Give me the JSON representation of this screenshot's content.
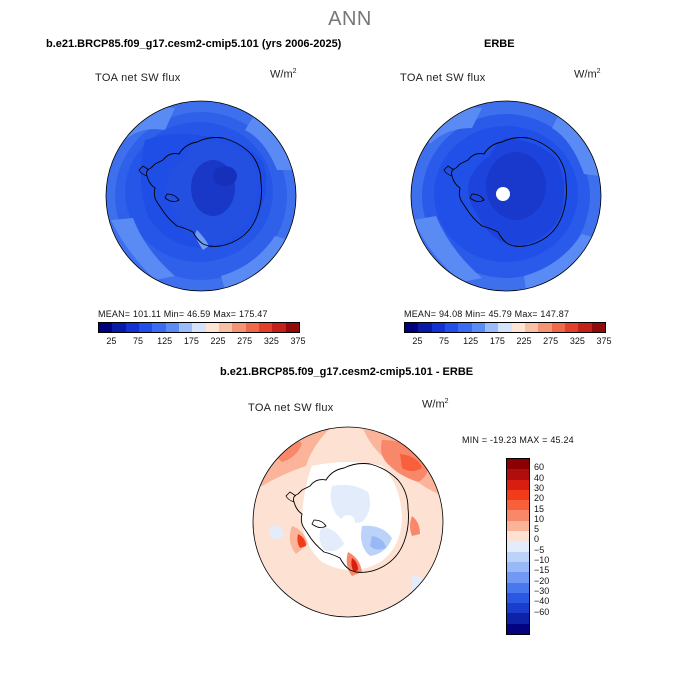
{
  "header": {
    "title": "ANN"
  },
  "panels": [
    {
      "title": "b.e21.BRCP85.f09_g17.cesm2-cmip5.101 (yrs 2006-2025)",
      "variable": "TOA net SW flux",
      "units_base": "W/m",
      "units_exp": "2",
      "stats": "MEAN= 101.11   Min=  46.59   Max= 175.47",
      "colorbar": {
        "colors": [
          "#00007f",
          "#0a1aa8",
          "#1432d2",
          "#2050ea",
          "#3a6cf2",
          "#5b8cf5",
          "#9bbcf8",
          "#d4e2fa",
          "#fde4d3",
          "#f8c0a4",
          "#f39572",
          "#ee6a4a",
          "#e2402b",
          "#c2221a",
          "#900b0b"
        ],
        "ticks": [
          "25",
          "75",
          "125",
          "175",
          "225",
          "275",
          "325",
          "375"
        ]
      }
    },
    {
      "title": "ERBE",
      "variable": "TOA net SW flux",
      "units_base": "W/m",
      "units_exp": "2",
      "stats": "MEAN=  94.08   Min=  45.79   Max= 147.87",
      "colorbar": {
        "colors": [
          "#00007f",
          "#0a1aa8",
          "#1432d2",
          "#2050ea",
          "#3a6cf2",
          "#5b8cf5",
          "#9bbcf8",
          "#d4e2fa",
          "#fde4d3",
          "#f8c0a4",
          "#f39572",
          "#ee6a4a",
          "#e2402b",
          "#c2221a",
          "#900b0b"
        ],
        "ticks": [
          "25",
          "75",
          "125",
          "175",
          "225",
          "275",
          "325",
          "375"
        ]
      }
    },
    {
      "title": "b.e21.BRCP85.f09_g17.cesm2-cmip5.101 - ERBE",
      "variable": "TOA net SW flux",
      "units_base": "W/m",
      "units_exp": "2",
      "stats": "MIN = -19.23 MAX =  45.24",
      "colorbar": {
        "colors": [
          "#8b0000",
          "#b00d0d",
          "#d81e10",
          "#f03c18",
          "#f7603a",
          "#f9876a",
          "#fbb49a",
          "#fde2d4",
          "#e3ecfa",
          "#bcd2f8",
          "#98b8f6",
          "#7098f4",
          "#4877ee",
          "#2a58e2",
          "#1a3dcc",
          "#0e22a8",
          "#03037f"
        ],
        "labels": [
          "60",
          "40",
          "30",
          "20",
          "15",
          "10",
          "5",
          "0",
          "−5",
          "−10",
          "−15",
          "−20",
          "−30",
          "−40",
          "−60"
        ]
      }
    }
  ]
}
